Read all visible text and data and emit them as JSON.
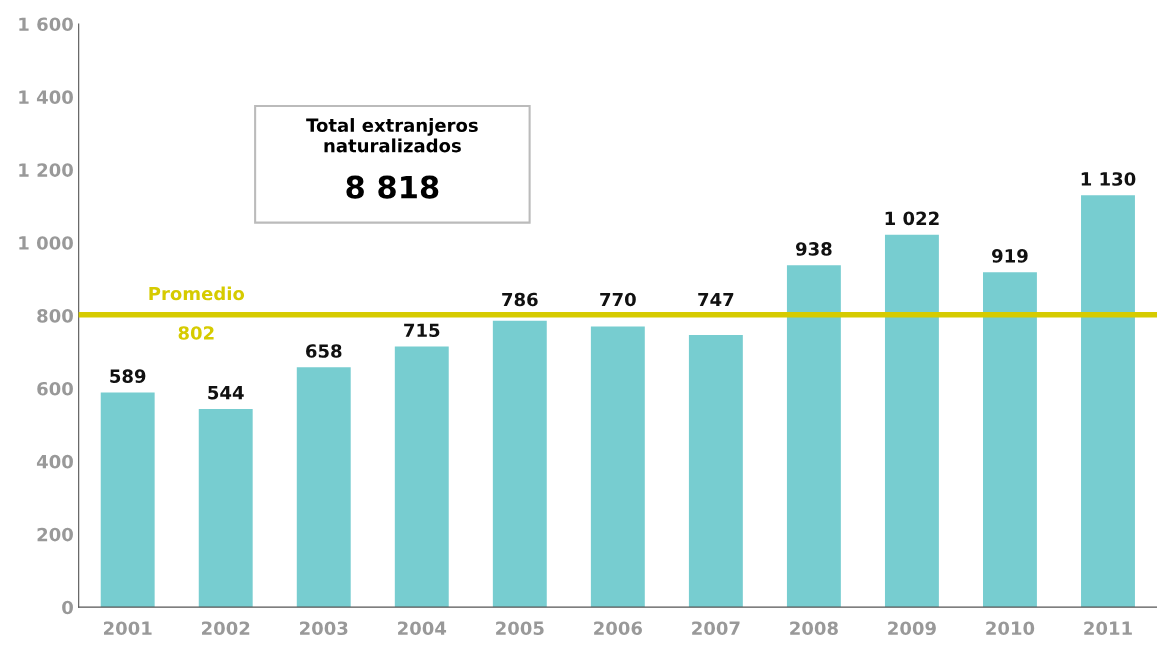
{
  "chart_data": {
    "type": "bar",
    "categories": [
      "2001",
      "2002",
      "2003",
      "2004",
      "2005",
      "2006",
      "2007",
      "2008",
      "2009",
      "2010",
      "2011"
    ],
    "values": [
      589,
      544,
      658,
      715,
      786,
      770,
      747,
      938,
      1022,
      919,
      1130
    ],
    "value_labels": [
      "589",
      "544",
      "658",
      "715",
      "786",
      "770",
      "747",
      "938",
      "1 022",
      "919",
      "1 130"
    ],
    "color": "#77cdd0",
    "ylim": [
      0,
      1600
    ],
    "yticks": [
      0,
      200,
      400,
      600,
      800,
      {
        "value": 1000,
        "label": "1 000"
      },
      {
        "value": 1200,
        "label": "1 200"
      },
      {
        "value": 1400,
        "label": "1 400"
      },
      {
        "value": 1600,
        "label": "1 600"
      }
    ],
    "ref_lines": [
      {
        "axis": "y",
        "value": 802,
        "label": "Promedio\n802",
        "color": "#d6cb00"
      }
    ],
    "annotations": [
      "Total extranjeros\nnaturalizados",
      "8 818"
    ],
    "grid": false,
    "legend": false
  }
}
